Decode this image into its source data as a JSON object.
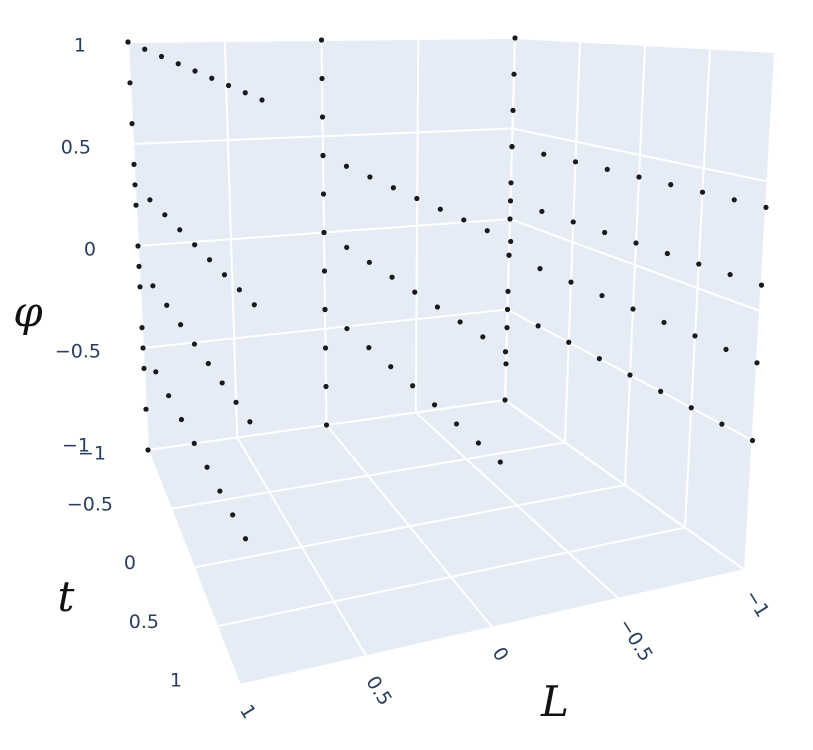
{
  "chart_data": {
    "type": "scatter3d",
    "xlabel": "L",
    "ylabel": "t",
    "zlabel": "φ",
    "color": "#1a1a1a",
    "xlim": [
      -1,
      1
    ],
    "ylim": [
      -1,
      1
    ],
    "zlim": [
      -1,
      1
    ],
    "xticks": [
      {
        "value": -1,
        "label": "−1"
      },
      {
        "value": -0.5,
        "label": "−0.5"
      },
      0,
      0.5,
      1
    ],
    "yticks": [
      {
        "value": -1,
        "label": "−1"
      },
      {
        "value": -0.5,
        "label": "−0.5"
      },
      0,
      0.5,
      1
    ],
    "zticks": [
      {
        "value": -1,
        "label": "−1"
      },
      {
        "value": -0.5,
        "label": "−0.5"
      },
      0,
      0.5,
      1
    ],
    "grid": true,
    "x": [
      1,
      1,
      1,
      1,
      1,
      1,
      1,
      1,
      1,
      1,
      1,
      0,
      0,
      0,
      0,
      0,
      0,
      0,
      0,
      0,
      0,
      0,
      -1,
      -1,
      -1,
      -1,
      -1,
      -1,
      -1,
      -1,
      -1,
      -1,
      -1,
      1,
      1,
      1,
      1,
      1,
      1,
      1,
      1,
      1,
      1,
      1,
      1,
      1,
      1,
      1,
      1,
      1,
      1,
      1,
      1,
      1,
      1,
      1,
      1,
      1,
      1,
      1,
      1,
      1,
      1,
      1,
      1,
      1,
      1,
      1,
      1,
      0,
      0,
      0,
      0,
      0,
      0,
      0,
      0,
      0,
      0,
      0,
      0,
      0,
      0,
      0,
      0,
      0,
      0,
      0,
      0,
      0,
      0,
      0,
      0,
      0,
      0,
      0,
      -1,
      -1,
      -1,
      -1,
      -1,
      -1,
      -1,
      -1,
      -1,
      -1,
      -1,
      -1,
      -1,
      -1,
      -1,
      -1,
      -1,
      -1,
      -1,
      -1,
      -1,
      -1,
      -1,
      -1,
      -1,
      -1,
      -1,
      -1,
      -1,
      -1,
      -1,
      -1,
      -1,
      -1,
      -1,
      -1
    ],
    "y": [
      -1,
      -1,
      -1,
      -1,
      -1,
      -1,
      -1,
      -1,
      -1,
      -1,
      -1,
      -1,
      -1,
      -1,
      -1,
      -1,
      -1,
      -1,
      -1,
      -1,
      -1,
      -1,
      -1,
      -1,
      -1,
      -1,
      -1,
      -1,
      -1,
      -1,
      -1,
      -1,
      -1,
      -1,
      -0.75,
      -0.5,
      -0.25,
      0,
      0.25,
      0.5,
      0.75,
      1,
      -1,
      -0.75,
      -0.5,
      -0.25,
      0,
      0.25,
      0.5,
      0.75,
      1,
      -1,
      -0.75,
      -0.5,
      -0.25,
      0,
      0.25,
      0.5,
      0.75,
      1,
      -1,
      -0.75,
      -0.5,
      -0.25,
      0,
      0.25,
      0.5,
      0.75,
      1,
      -1,
      -0.75,
      -0.5,
      -0.25,
      0,
      0.25,
      0.5,
      0.75,
      1,
      -1,
      -0.75,
      -0.5,
      -0.25,
      0,
      0.25,
      0.5,
      0.75,
      1,
      -1,
      -0.75,
      -0.5,
      -0.25,
      0,
      0.25,
      0.5,
      0.75,
      1,
      -1,
      -0.75,
      -0.5,
      -0.25,
      0,
      0.25,
      0.5,
      0.75,
      1,
      -1,
      -0.75,
      -0.5,
      -0.25,
      0,
      0.25,
      0.5,
      0.75,
      1,
      -1,
      -0.75,
      -0.5,
      -0.25,
      0,
      0.25,
      0.5,
      0.75,
      1,
      -1,
      -0.75,
      -0.5,
      -0.25,
      0,
      0.25,
      0.5,
      0.75,
      1
    ],
    "z": [
      -1,
      -0.8,
      -0.6,
      -0.4,
      -0.2,
      0,
      0.2,
      0.4,
      0.6,
      0.8,
      1,
      -1,
      -0.8,
      -0.6,
      -0.4,
      -0.2,
      0,
      0.2,
      0.4,
      0.6,
      0.8,
      1,
      -1,
      -0.8,
      -0.6,
      -0.4,
      -0.2,
      0,
      0.2,
      0.4,
      0.6,
      0.8,
      1,
      1,
      1,
      1,
      1,
      1,
      1,
      1,
      1,
      1,
      0.3,
      0.3,
      0.3,
      0.3,
      0.3,
      0.3,
      0.3,
      0.3,
      0.3,
      -0.1,
      -0.1,
      -0.1,
      -0.1,
      -0.1,
      -0.1,
      -0.1,
      -0.1,
      -0.1,
      -0.5,
      -0.5,
      -0.5,
      -0.5,
      -0.5,
      -0.5,
      -0.5,
      -0.5,
      -0.5,
      0.4,
      0.4,
      0.4,
      0.4,
      0.4,
      0.4,
      0.4,
      0.4,
      0.4,
      0,
      0,
      0,
      0,
      0,
      0,
      0,
      0,
      0,
      -0.4,
      -0.4,
      -0.4,
      -0.4,
      -0.4,
      -0.4,
      -0.4,
      -0.4,
      -0.4,
      0.4,
      0.4,
      0.4,
      0.4,
      0.4,
      0.4,
      0.4,
      0.4,
      0.4,
      0.1,
      0.1,
      0.1,
      0.1,
      0.1,
      0.1,
      0.1,
      0.1,
      0.1,
      -0.2,
      -0.2,
      -0.2,
      -0.2,
      -0.2,
      -0.2,
      -0.2,
      -0.2,
      -0.2,
      -0.5,
      -0.5,
      -0.5,
      -0.5,
      -0.5,
      -0.5,
      -0.5,
      -0.5,
      -0.5
    ]
  }
}
